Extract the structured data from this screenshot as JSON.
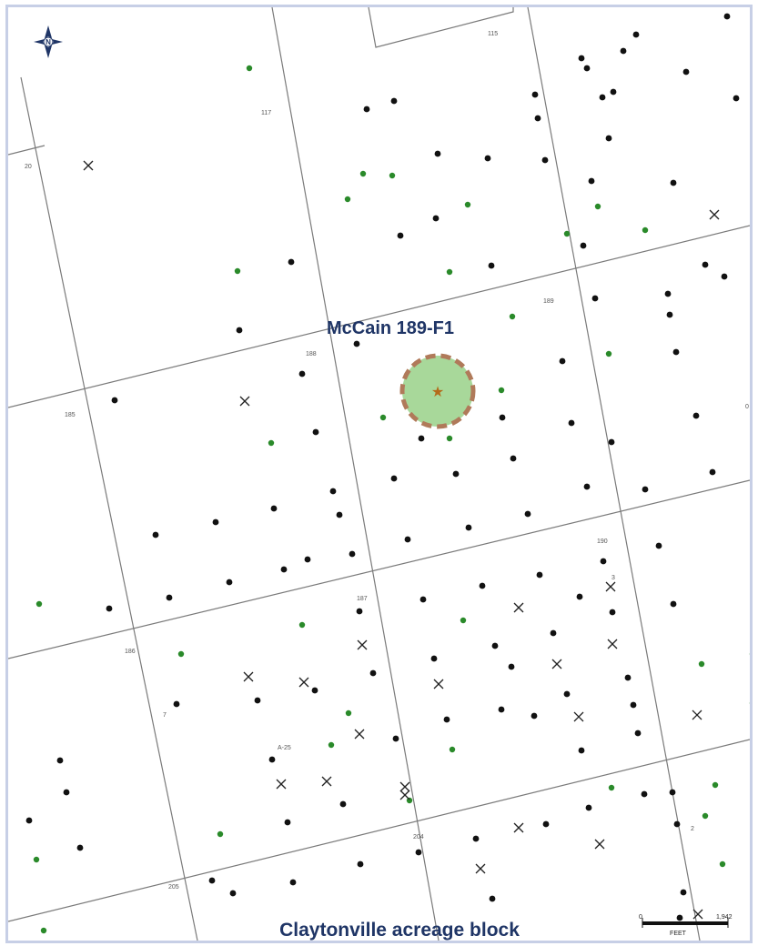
{
  "map": {
    "well_label": "McCain 189-F1",
    "block_label": "Claytonville acreage block",
    "north_label": "N",
    "colors": {
      "grid_line": "#7a7a7a",
      "dot_black": "#111111",
      "dot_green": "#2a8a2a",
      "circle_fill": "#a8d89a",
      "circle_border": "#b07a5a",
      "star": "#b46a1a",
      "title_text": "#1f3566",
      "frame": "#c7cfe6"
    },
    "tract_labels": [
      "115",
      "117",
      "20",
      "189",
      "188",
      "185",
      "190",
      "187",
      "186",
      "A-25",
      "204",
      "205",
      "0",
      "7",
      "3",
      "2"
    ],
    "scale_bar": {
      "start_label": "0",
      "end_label": "1,942",
      "unit_label": "FEET"
    }
  }
}
